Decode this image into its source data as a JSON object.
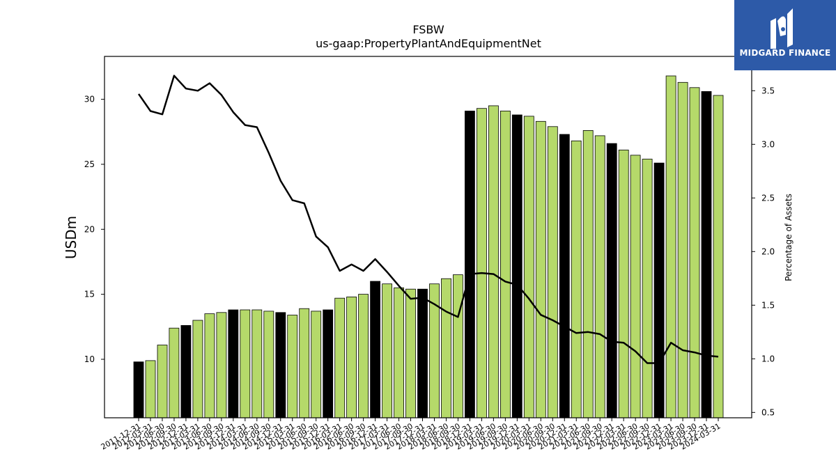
{
  "chart_data": {
    "type": "bar",
    "title": "FSBW",
    "subtitle": "us-gaap:PropertyPlantAndEquipmentNet",
    "ylabel": "USDm",
    "ylabel_right": "Percentage of Assets",
    "ylim": [
      5.5,
      33.3
    ],
    "ylim_right": [
      0.45,
      3.82
    ],
    "yticks": [
      10,
      15,
      20,
      25,
      30
    ],
    "yticks_right": [
      0.5,
      1.0,
      1.5,
      2.0,
      2.5,
      3.0,
      3.5
    ],
    "colors": {
      "annual": "#000000",
      "quarter": "#b5d96a",
      "line": "#000000"
    },
    "categories": [
      "2011-12-31",
      "2012-03-31",
      "2012-06-30",
      "2012-09-30",
      "2012-12-31",
      "2013-03-31",
      "2013-06-30",
      "2013-09-30",
      "2013-12-31",
      "2014-03-31",
      "2014-06-30",
      "2014-09-30",
      "2014-12-31",
      "2015-03-31",
      "2015-06-30",
      "2015-09-30",
      "2015-12-31",
      "2016-03-31",
      "2016-06-30",
      "2016-09-30",
      "2016-12-31",
      "2017-03-31",
      "2017-06-30",
      "2017-09-30",
      "2017-12-31",
      "2018-03-31",
      "2018-06-30",
      "2018-09-30",
      "2018-12-31",
      "2019-03-31",
      "2019-06-30",
      "2019-09-30",
      "2019-12-31",
      "2020-03-31",
      "2020-06-30",
      "2020-09-30",
      "2020-12-31",
      "2021-03-31",
      "2021-06-30",
      "2021-09-30",
      "2021-12-31",
      "2022-03-31",
      "2022-06-30",
      "2022-09-30",
      "2022-12-31",
      "2023-03-31",
      "2023-06-30",
      "2023-09-30",
      "2023-12-31",
      "2024-03-31"
    ],
    "series": [
      {
        "kind": "bar",
        "values": [
          9.8,
          9.9,
          11.1,
          12.4,
          12.6,
          13.0,
          13.5,
          13.6,
          13.8,
          13.8,
          13.8,
          13.7,
          13.6,
          13.4,
          13.9,
          13.7,
          13.8,
          14.7,
          14.8,
          15.0,
          16.0,
          15.8,
          15.5,
          15.4,
          15.4,
          15.8,
          16.2,
          16.5,
          29.1,
          29.3,
          29.5,
          29.1,
          28.8,
          28.7,
          28.3,
          27.9,
          27.3,
          26.8,
          27.6,
          27.2,
          26.6,
          26.1,
          25.7,
          25.4,
          25.1,
          31.8,
          31.3,
          30.9,
          30.6,
          30.3
        ],
        "annual": [
          true,
          false,
          false,
          false,
          true,
          false,
          false,
          false,
          true,
          false,
          false,
          false,
          true,
          false,
          false,
          false,
          true,
          false,
          false,
          false,
          true,
          false,
          false,
          false,
          true,
          false,
          false,
          false,
          true,
          false,
          false,
          false,
          true,
          false,
          false,
          false,
          true,
          false,
          false,
          false,
          true,
          false,
          false,
          false,
          true,
          false,
          false,
          false,
          true,
          false
        ]
      },
      {
        "kind": "line",
        "axis": "right",
        "values": [
          3.47,
          3.31,
          3.28,
          3.64,
          3.52,
          3.5,
          3.57,
          3.46,
          3.3,
          3.18,
          3.16,
          2.92,
          2.66,
          2.48,
          2.45,
          2.14,
          2.04,
          1.82,
          1.88,
          1.82,
          1.93,
          1.81,
          1.68,
          1.56,
          1.57,
          1.51,
          1.44,
          1.39,
          1.79,
          1.8,
          1.79,
          1.72,
          1.69,
          1.56,
          1.41,
          1.36,
          1.3,
          1.24,
          1.25,
          1.23,
          1.16,
          1.15,
          1.07,
          0.96,
          0.96,
          1.15,
          1.08,
          1.06,
          1.03,
          1.02
        ]
      }
    ]
  },
  "logo": {
    "text": "MIDGARD FINANCE"
  }
}
